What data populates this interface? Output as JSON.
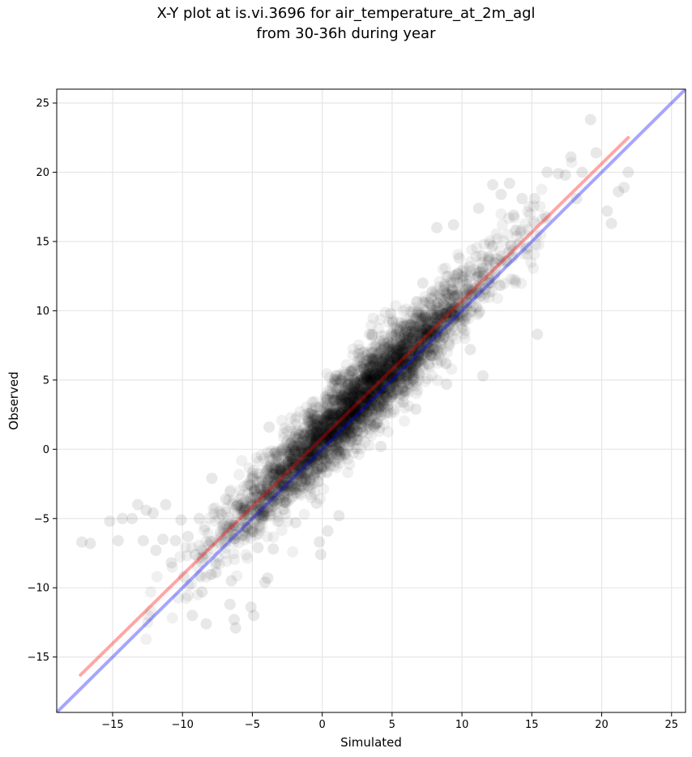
{
  "chart_data": {
    "type": "scatter",
    "title": "X-Y plot at is.vi.3696 for air_temperature_at_2m_agl",
    "subtitle": "from 30-36h during year",
    "xlabel": "Simulated",
    "ylabel": "Observed",
    "xlim": [
      -19,
      26
    ],
    "ylim": [
      -19,
      26
    ],
    "xticks": [
      -15,
      -10,
      -5,
      0,
      5,
      10,
      15,
      20,
      25
    ],
    "yticks": [
      -15,
      -10,
      -5,
      0,
      5,
      10,
      15,
      20,
      25
    ],
    "xtick_labels": [
      "−15",
      "−10",
      "−5",
      "0",
      "5",
      "10",
      "15",
      "20",
      "25"
    ],
    "ytick_labels": [
      "−15",
      "−10",
      "−5",
      "0",
      "5",
      "10",
      "15",
      "20",
      "25"
    ],
    "grid": true,
    "colors": {
      "points": "#000000",
      "fit_line": "#ff0000",
      "identity_line": "#0000ff",
      "grid": "#e6e6e6"
    },
    "lines": [
      {
        "kind": "fit",
        "x": [
          -17.3,
          21.9
        ],
        "y": [
          -16.3,
          22.5
        ]
      },
      {
        "kind": "identity",
        "x": [
          -19,
          26
        ],
        "y": [
          -19,
          26
        ]
      }
    ],
    "points": [
      [
        -17.2,
        -6.7
      ],
      [
        -16.6,
        -6.8
      ],
      [
        -15.2,
        -5.2
      ],
      [
        -14.6,
        -6.6
      ],
      [
        -14.3,
        -5.0
      ],
      [
        -13.6,
        -5.0
      ],
      [
        -13.2,
        -4.0
      ],
      [
        -12.8,
        -6.6
      ],
      [
        -12.6,
        -4.4
      ],
      [
        -12.1,
        -4.6
      ],
      [
        -11.9,
        -7.3
      ],
      [
        -11.4,
        -6.5
      ],
      [
        -11.2,
        -4.0
      ],
      [
        -10.8,
        -8.2
      ],
      [
        -10.5,
        -6.6
      ],
      [
        -10.1,
        -5.1
      ],
      [
        -9.9,
        -9.2
      ],
      [
        -9.6,
        -6.3
      ],
      [
        -9.3,
        -12.0
      ],
      [
        -9.1,
        -7.6
      ],
      [
        -8.8,
        -5.0
      ],
      [
        -8.6,
        -10.3
      ],
      [
        -8.3,
        -12.6
      ],
      [
        -8.1,
        -6.9
      ],
      [
        -7.9,
        -2.1
      ],
      [
        -7.6,
        -8.9
      ],
      [
        -7.2,
        -4.7
      ],
      [
        -6.9,
        -3.6
      ],
      [
        -6.5,
        -9.5
      ],
      [
        -6.2,
        -12.9
      ],
      [
        -6.3,
        -12.3
      ],
      [
        -6.6,
        -11.2
      ],
      [
        -5.5,
        -4.1
      ],
      [
        -5.1,
        -11.4
      ],
      [
        -4.9,
        -12.0
      ],
      [
        -4.6,
        -7.1
      ],
      [
        -4.1,
        -9.6
      ],
      [
        -3.9,
        -9.3
      ],
      [
        -3.8,
        -3.3
      ],
      [
        -3.5,
        -7.2
      ],
      [
        -3.1,
        -2.0
      ],
      [
        -3.8,
        1.6
      ],
      [
        -2.4,
        -0.9
      ],
      [
        -1.9,
        -5.3
      ],
      [
        -1.2,
        1.2
      ],
      [
        -0.7,
        3.4
      ],
      [
        -0.4,
        -3.9
      ],
      [
        -0.2,
        -6.7
      ],
      [
        -0.1,
        -7.6
      ],
      [
        0.4,
        -5.9
      ],
      [
        0.7,
        4.0
      ],
      [
        1.2,
        -4.8
      ],
      [
        1.8,
        3.9
      ],
      [
        2.6,
        6.9
      ],
      [
        3.1,
        2.0
      ],
      [
        3.4,
        8.3
      ],
      [
        4.2,
        0.2
      ],
      [
        4.9,
        9.8
      ],
      [
        5.3,
        7.2
      ],
      [
        5.8,
        3.4
      ],
      [
        6.3,
        9.0
      ],
      [
        6.7,
        2.9
      ],
      [
        7.2,
        12.0
      ],
      [
        7.8,
        10.9
      ],
      [
        8.2,
        16.0
      ],
      [
        8.9,
        4.7
      ],
      [
        9.4,
        16.2
      ],
      [
        9.8,
        13.8
      ],
      [
        10.6,
        7.2
      ],
      [
        11.2,
        17.4
      ],
      [
        11.5,
        5.3
      ],
      [
        12.2,
        19.1
      ],
      [
        12.8,
        18.4
      ],
      [
        13.4,
        19.2
      ],
      [
        13.7,
        16.9
      ],
      [
        14.3,
        18.1
      ],
      [
        14.6,
        14.5
      ],
      [
        15.2,
        18.1
      ],
      [
        15.4,
        8.3
      ],
      [
        16.1,
        20.0
      ],
      [
        16.9,
        19.9
      ],
      [
        17.4,
        19.8
      ],
      [
        17.8,
        21.1
      ],
      [
        18.2,
        18.1
      ],
      [
        18.6,
        20.0
      ],
      [
        19.2,
        23.8
      ],
      [
        19.6,
        21.4
      ],
      [
        20.4,
        17.2
      ],
      [
        20.7,
        16.3
      ],
      [
        21.2,
        18.6
      ],
      [
        21.6,
        18.9
      ],
      [
        21.9,
        20.0
      ]
    ]
  }
}
